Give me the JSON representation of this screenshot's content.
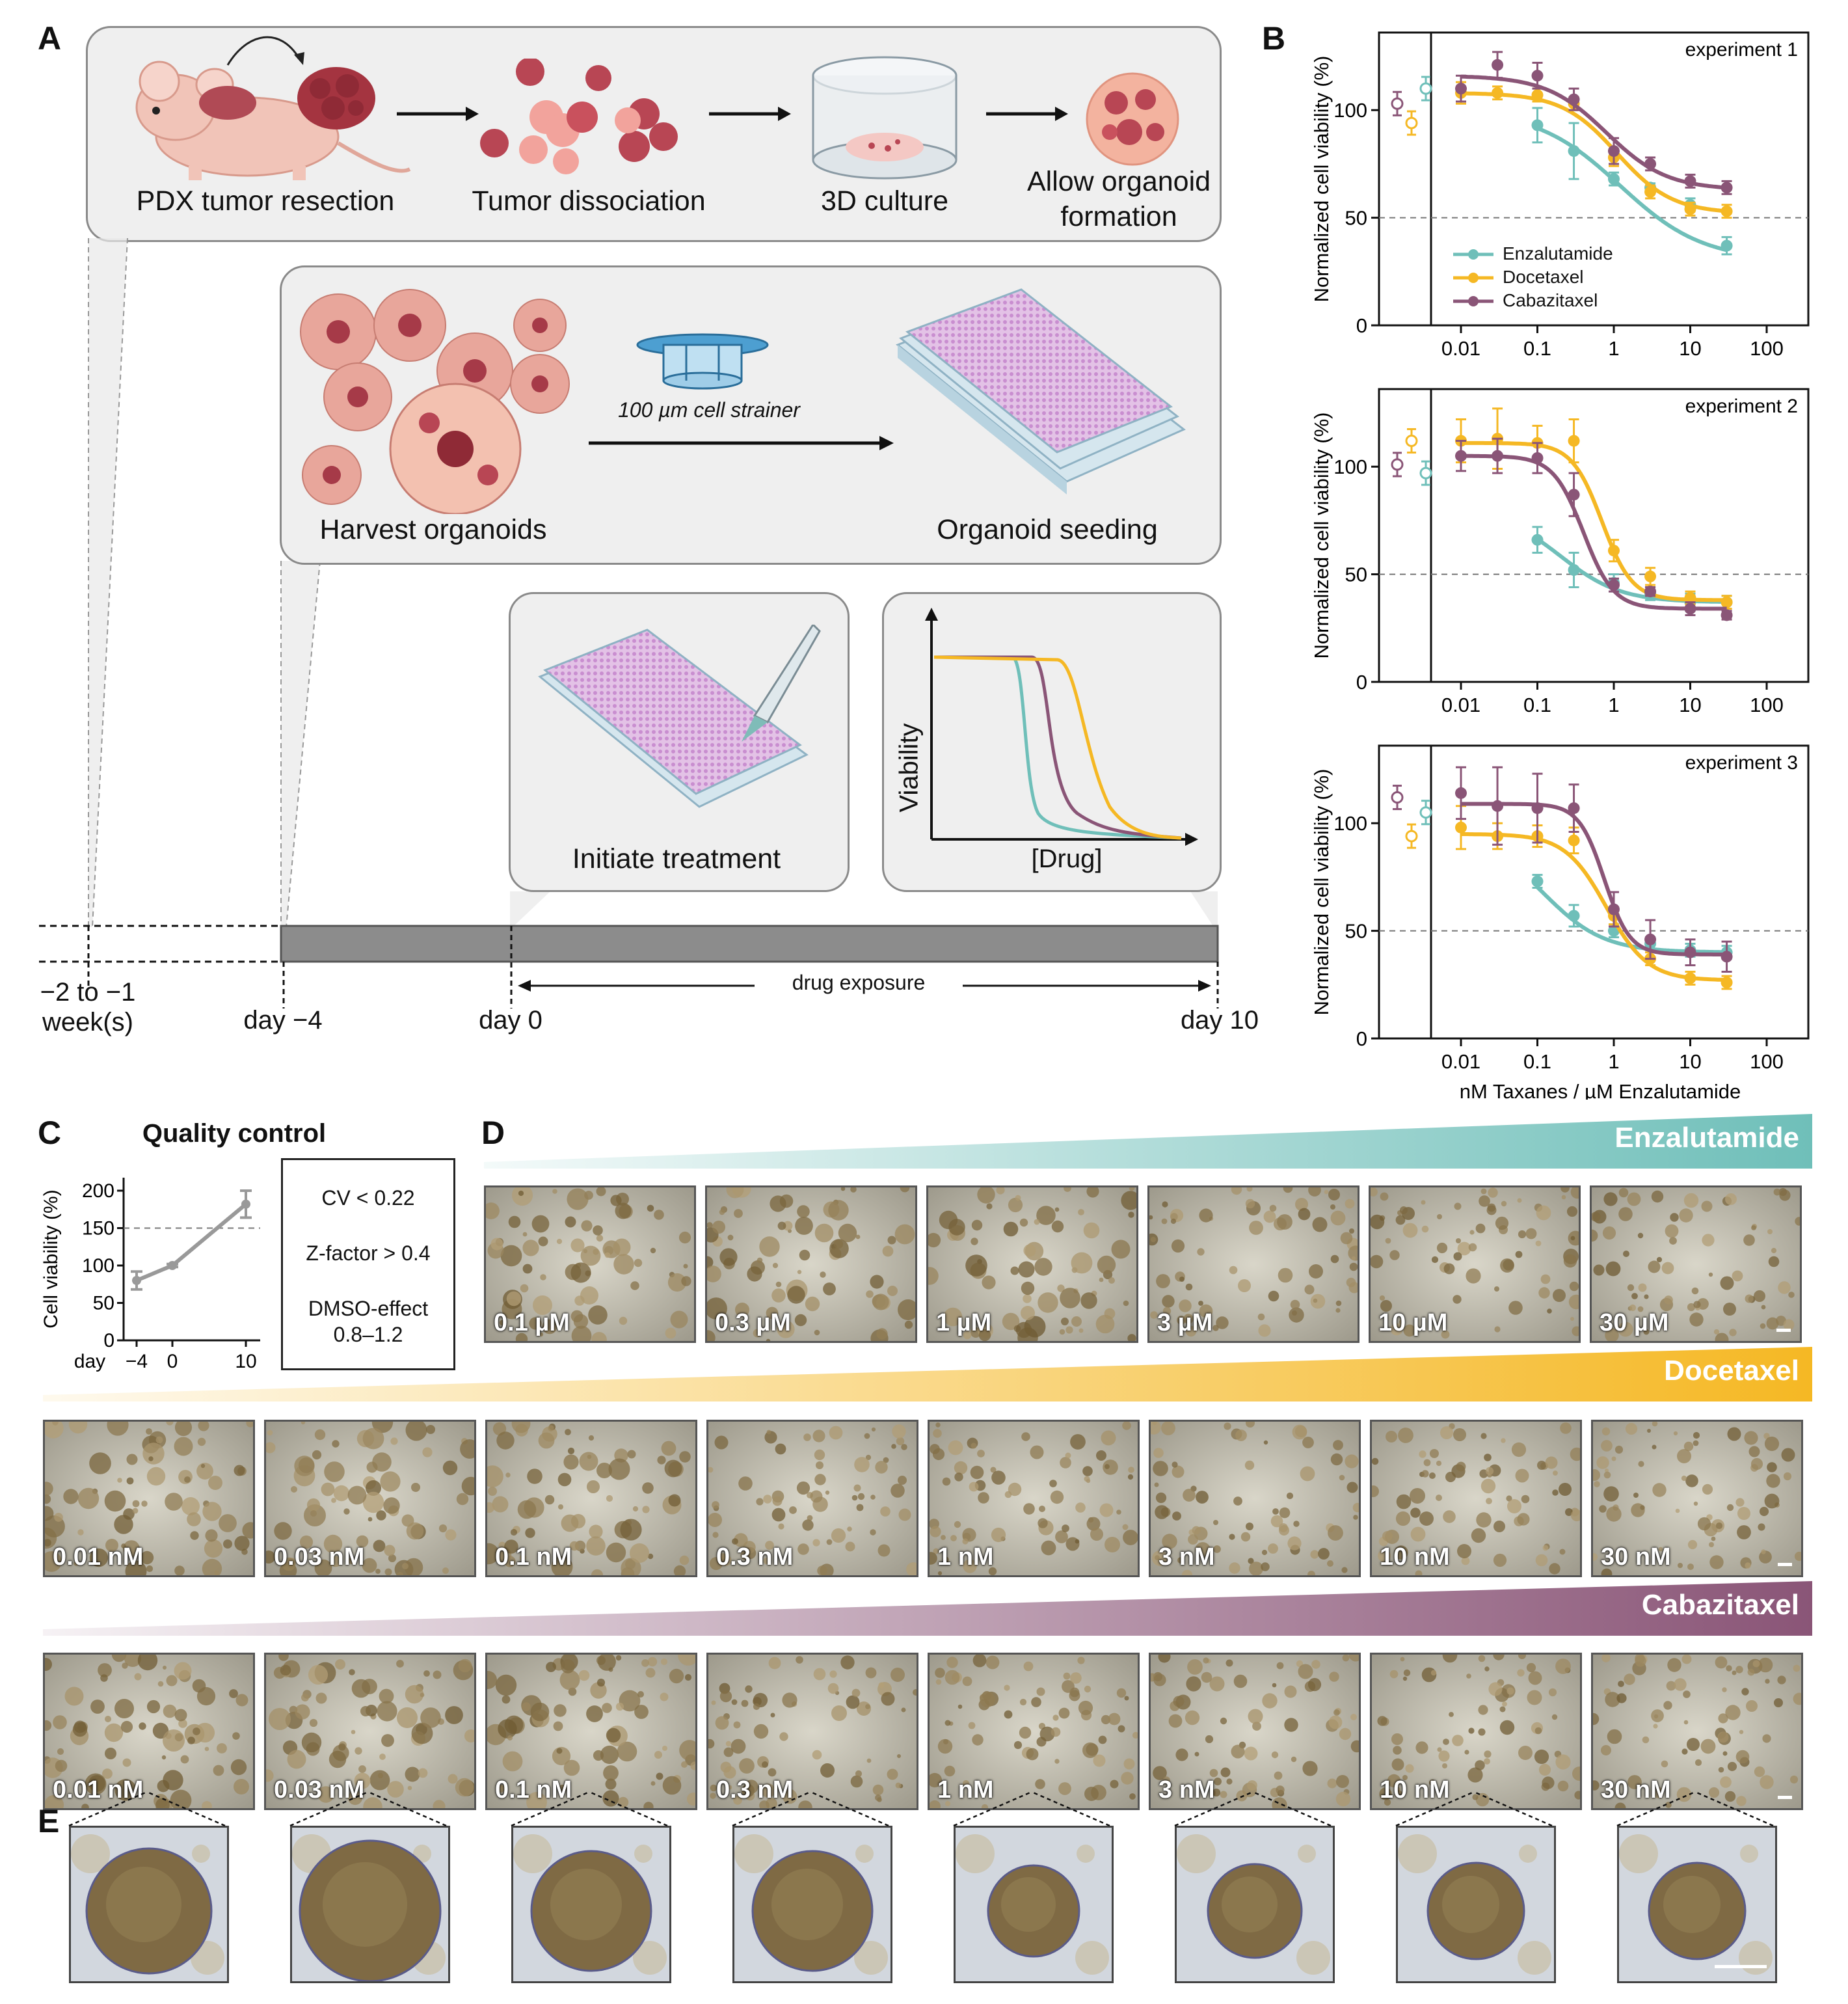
{
  "panels": {
    "a": "A",
    "b": "B",
    "c": "C",
    "d": "D",
    "e": "E"
  },
  "panelA": {
    "step1": "PDX tumor resection",
    "step2": "Tumor dissociation",
    "step3": "3D culture",
    "step4_line1": "Allow organoid",
    "step4_line2": "formation",
    "harvest": "Harvest organoids",
    "strainer": "100 µm cell strainer",
    "seeding": "Organoid seeding",
    "treatment": "Initiate treatment",
    "viability_axis": "Viability",
    "drug_axis": "[Drug]",
    "timeline": {
      "t1_line1": "−2 to −1",
      "t1_line2": "week(s)",
      "t2": "day −4",
      "t3": "day 0",
      "t4": "day 10",
      "exposure": "drug exposure"
    }
  },
  "chart_data": [
    {
      "type": "line",
      "title": "experiment 1",
      "xlabel": "nM Taxanes / µM Enzalutamide",
      "ylabel": "Normalized cell viability (%)",
      "xscale": "log",
      "xlim": [
        0.001,
        100
      ],
      "ylim": [
        0,
        130
      ],
      "xticks": [
        "0.01",
        "0.1",
        "1",
        "10",
        "100"
      ],
      "yticks": [
        "0",
        "50",
        "100"
      ],
      "reference_line": 50,
      "legend": [
        "Enzalutamide",
        "Docetaxel",
        "Cabazitaxel"
      ],
      "controls": [
        {
          "name": "Cabazitaxel",
          "value": 103
        },
        {
          "name": "Docetaxel",
          "value": 94
        },
        {
          "name": "Enzalutamide",
          "value": 110
        }
      ],
      "series": [
        {
          "name": "Enzalutamide",
          "color": "#6fbfb9",
          "x": [
            0.1,
            0.3,
            1,
            3,
            10,
            30
          ],
          "values": [
            93,
            81,
            68,
            64,
            56,
            37
          ],
          "err": [
            8,
            13,
            3,
            2,
            3,
            4
          ],
          "fit": {
            "top": 100,
            "bottom": 30,
            "ec50": 1.2,
            "hill": 0.8
          }
        },
        {
          "name": "Docetaxel",
          "color": "#f5b824",
          "x": [
            0.01,
            0.03,
            0.1,
            0.3,
            1,
            3,
            10,
            30
          ],
          "values": [
            108,
            108,
            107,
            103,
            78,
            62,
            54,
            53
          ],
          "err": [
            5,
            3,
            3,
            3,
            4,
            3,
            3,
            3
          ],
          "fit": {
            "top": 108,
            "bottom": 52,
            "ec50": 1.1,
            "hill": 1.2
          }
        },
        {
          "name": "Cabazitaxel",
          "color": "#8a5577",
          "x": [
            0.01,
            0.03,
            0.1,
            0.3,
            1,
            3,
            10,
            30
          ],
          "values": [
            110,
            121,
            116,
            105,
            81,
            75,
            67,
            64
          ],
          "err": [
            6,
            6,
            6,
            5,
            6,
            3,
            3,
            3
          ],
          "fit": {
            "top": 116,
            "bottom": 63,
            "ec50": 0.8,
            "hill": 1.1
          }
        }
      ]
    },
    {
      "type": "line",
      "title": "experiment 2",
      "xlabel": "",
      "ylabel": "Normalized cell viability (%)",
      "xscale": "log",
      "xlim": [
        0.001,
        100
      ],
      "ylim": [
        0,
        130
      ],
      "xticks": [
        "0.01",
        "0.1",
        "1",
        "10",
        "100"
      ],
      "yticks": [
        "0",
        "50",
        "100"
      ],
      "reference_line": 50,
      "controls": [
        {
          "name": "Cabazitaxel",
          "value": 101
        },
        {
          "name": "Docetaxel",
          "value": 112
        },
        {
          "name": "Enzalutamide",
          "value": 97
        }
      ],
      "series": [
        {
          "name": "Enzalutamide",
          "color": "#6fbfb9",
          "x": [
            0.1,
            0.3,
            1,
            3,
            10,
            30
          ],
          "values": [
            66,
            52,
            46,
            41,
            37,
            37
          ],
          "err": [
            6,
            8,
            4,
            3,
            4,
            3
          ],
          "fit": {
            "top": 80,
            "bottom": 37,
            "ec50": 0.2,
            "hill": 1.1
          }
        },
        {
          "name": "Docetaxel",
          "color": "#f5b824",
          "x": [
            0.01,
            0.03,
            0.1,
            0.3,
            1,
            3,
            10,
            30
          ],
          "values": [
            112,
            113,
            111,
            112,
            61,
            49,
            39,
            37
          ],
          "err": [
            10,
            14,
            8,
            10,
            5,
            4,
            3,
            3
          ],
          "fit": {
            "top": 111,
            "bottom": 38,
            "ec50": 0.7,
            "hill": 2.2
          }
        },
        {
          "name": "Cabazitaxel",
          "color": "#8a5577",
          "x": [
            0.01,
            0.03,
            0.1,
            0.3,
            1,
            3,
            10,
            30
          ],
          "values": [
            105,
            105,
            104,
            87,
            45,
            42,
            34,
            31
          ],
          "err": [
            7,
            8,
            7,
            10,
            3,
            2,
            3,
            2
          ],
          "fit": {
            "top": 105,
            "bottom": 34,
            "ec50": 0.4,
            "hill": 2.2
          }
        }
      ]
    },
    {
      "type": "line",
      "title": "experiment 3",
      "xlabel": "nM Taxanes / µM Enzalutamide",
      "ylabel": "Normalized cell viability (%)",
      "xscale": "log",
      "xlim": [
        0.001,
        100
      ],
      "ylim": [
        0,
        130
      ],
      "xticks": [
        "0.01",
        "0.1",
        "1",
        "10",
        "100"
      ],
      "yticks": [
        "0",
        "50",
        "100"
      ],
      "reference_line": 50,
      "controls": [
        {
          "name": "Cabazitaxel",
          "value": 112
        },
        {
          "name": "Docetaxel",
          "value": 94
        },
        {
          "name": "Enzalutamide",
          "value": 105
        }
      ],
      "series": [
        {
          "name": "Enzalutamide",
          "color": "#6fbfb9",
          "x": [
            0.1,
            0.3,
            1,
            3,
            10,
            30
          ],
          "values": [
            73,
            57,
            50,
            44,
            41,
            40
          ],
          "err": [
            3,
            5,
            3,
            3,
            3,
            3
          ],
          "fit": {
            "top": 95,
            "bottom": 40,
            "ec50": 0.12,
            "hill": 1.1
          }
        },
        {
          "name": "Docetaxel",
          "color": "#f5b824",
          "x": [
            0.01,
            0.03,
            0.1,
            0.3,
            1,
            3,
            10,
            30
          ],
          "values": [
            98,
            94,
            94,
            92,
            57,
            37,
            28,
            26
          ],
          "err": [
            10,
            6,
            5,
            6,
            4,
            3,
            3,
            3
          ],
          "fit": {
            "top": 95,
            "bottom": 27,
            "ec50": 0.8,
            "hill": 1.6
          }
        },
        {
          "name": "Cabazitaxel",
          "color": "#8a5577",
          "x": [
            0.01,
            0.03,
            0.1,
            0.3,
            1,
            3,
            10,
            30
          ],
          "values": [
            114,
            108,
            107,
            107,
            60,
            46,
            40,
            38
          ],
          "err": [
            12,
            18,
            16,
            11,
            8,
            9,
            6,
            7
          ],
          "fit": {
            "top": 109,
            "bottom": 39,
            "ec50": 0.75,
            "hill": 2.6
          }
        }
      ]
    },
    {
      "type": "line",
      "title": "Quality control",
      "xlabel": "day",
      "ylabel": "Cell viability (%)",
      "xticks": [
        "−4",
        "0",
        "10"
      ],
      "yticks": [
        "0",
        "50",
        "100",
        "150",
        "200"
      ],
      "ylim": [
        0,
        210
      ],
      "reference_line": 150,
      "series": [
        {
          "name": "QC",
          "color": "#999999",
          "x": [
            -4,
            0,
            10
          ],
          "values": [
            80,
            100,
            182
          ],
          "err": [
            12,
            2,
            18
          ]
        }
      ]
    }
  ],
  "qc_criteria": {
    "cv": "CV < 0.22",
    "z": "Z-factor > 0.4",
    "dmso1": "DMSO-effect",
    "dmso2": "0.8–1.2"
  },
  "panelD": {
    "rows": [
      {
        "drug": "Enzalutamide",
        "color": "#6fbfb9",
        "concs": [
          "0.1 µM",
          "0.3 µM",
          "1 µM",
          "3 µM",
          "10 µM",
          "30 µM"
        ]
      },
      {
        "drug": "Docetaxel",
        "color": "#f5b824",
        "concs": [
          "0.01 nM",
          "0.03 nM",
          "0.1 nM",
          "0.3 nM",
          "1 nM",
          "3 nM",
          "10 nM",
          "30 nM"
        ]
      },
      {
        "drug": "Cabazitaxel",
        "color": "#8a5577",
        "concs": [
          "0.01 nM",
          "0.03 nM",
          "0.1 nM",
          "0.3 nM",
          "1 nM",
          "3 nM",
          "10 nM",
          "30 nM"
        ]
      }
    ]
  }
}
